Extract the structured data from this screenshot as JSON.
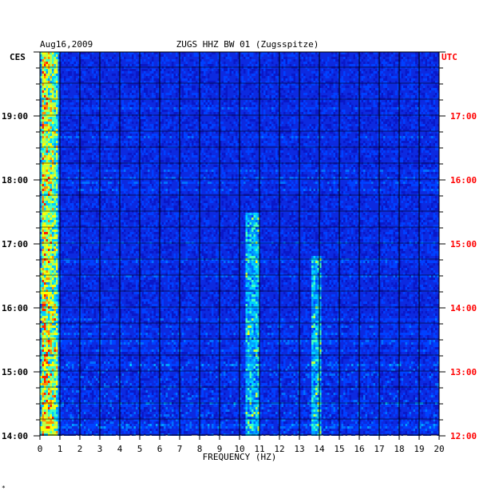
{
  "chart_data": {
    "type": "heatmap",
    "header": {
      "date": "Aug16,2009",
      "station": "ZUGS HHZ BW 01 (Zugsspitze)"
    },
    "left_axis_title": "CES",
    "right_axis_title": "UTC",
    "xlabel": "FREQUENCY (HZ)",
    "xlim": [
      0,
      20
    ],
    "x_ticks": [
      "0",
      "1",
      "2",
      "3",
      "4",
      "5",
      "6",
      "7",
      "8",
      "9",
      "10",
      "11",
      "12",
      "13",
      "14",
      "15",
      "16",
      "17",
      "18",
      "19",
      "20"
    ],
    "time_range_ces": [
      "14:00",
      "20:00"
    ],
    "left_ticks": [
      "19:00",
      "18:00",
      "17:00",
      "16:00",
      "15:00",
      "14:00"
    ],
    "right_ticks": [
      "17:00",
      "16:00",
      "15:00",
      "14:00",
      "13:00",
      "12:00"
    ],
    "colors": {
      "background_low": "#0a18c8",
      "mid": "#00b4ff",
      "high": "#e6e600",
      "peak": "#ff2000",
      "utc_label": "#ff0000",
      "grid": "#000000"
    },
    "features": [
      {
        "description": "strong low-frequency energy",
        "freq_hz": [
          0.1,
          0.8
        ]
      },
      {
        "description": "persistent band",
        "freq_hz": [
          10.3,
          10.9
        ],
        "time_ces": [
          "14:00",
          "17:30"
        ]
      },
      {
        "description": "persistent band",
        "freq_hz": [
          13.6,
          14.0
        ],
        "time_ces": [
          "14:00",
          "16:50"
        ]
      }
    ]
  },
  "footnote": "*"
}
